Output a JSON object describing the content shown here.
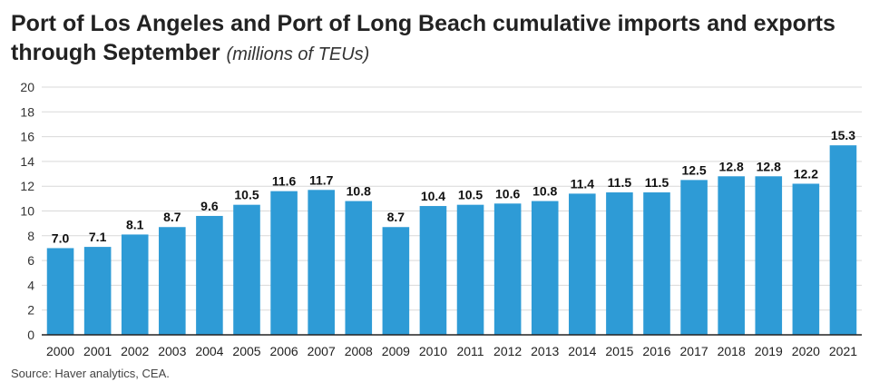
{
  "title": "Port of Los Angeles and Port of Long Beach cumulative imports and exports through September",
  "subtitle": "(millions of TEUs)",
  "source": "Source: Haver analytics, CEA.",
  "colors": {
    "bar": "#2e9bd6",
    "grid": "#d9d9d9",
    "axis": "#222222",
    "label": "#111111"
  },
  "chart_data": {
    "type": "bar",
    "categories": [
      "2000",
      "2001",
      "2002",
      "2003",
      "2004",
      "2005",
      "2006",
      "2007",
      "2008",
      "2009",
      "2010",
      "2011",
      "2012",
      "2013",
      "2014",
      "2015",
      "2016",
      "2017",
      "2018",
      "2019",
      "2020",
      "2021"
    ],
    "values": [
      7.0,
      7.1,
      8.1,
      8.7,
      9.6,
      10.5,
      11.6,
      11.7,
      10.8,
      8.7,
      10.4,
      10.5,
      10.6,
      10.8,
      11.4,
      11.5,
      11.5,
      12.5,
      12.8,
      12.8,
      12.2,
      15.3
    ],
    "value_labels": [
      "7.0",
      "7.1",
      "8.1",
      "8.7",
      "9.6",
      "10.5",
      "11.6",
      "11.7",
      "10.8",
      "8.7",
      "10.4",
      "10.5",
      "10.6",
      "10.8",
      "11.4",
      "11.5",
      "11.5",
      "12.5",
      "12.8",
      "12.8",
      "12.2",
      "15.3"
    ],
    "y_ticks": [
      "0",
      "2",
      "4",
      "6",
      "8",
      "10",
      "12",
      "14",
      "16",
      "18",
      "20"
    ],
    "ylim": [
      0,
      20
    ],
    "grid": true,
    "xlabel": "",
    "ylabel": ""
  }
}
